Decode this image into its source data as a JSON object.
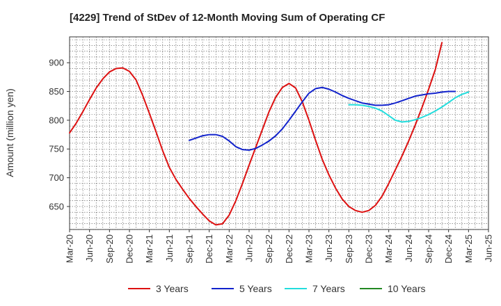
{
  "chart_data": {
    "type": "line",
    "title": "[4229]  Trend of StDev of 12-Month Moving Sum of Operating CF",
    "xlabel": "",
    "ylabel": "Amount (million yen)",
    "ylim": [
      610,
      945
    ],
    "yticks": [
      650,
      700,
      750,
      800,
      850,
      900
    ],
    "x_range": [
      0,
      63
    ],
    "xtick_labels": [
      "Mar-20",
      "Jun-20",
      "Sep-20",
      "Dec-20",
      "Mar-21",
      "Jun-21",
      "Sep-21",
      "Dec-21",
      "Mar-22",
      "Jun-22",
      "Sep-22",
      "Dec-22",
      "Mar-23",
      "Jun-23",
      "Sep-23",
      "Dec-23",
      "Mar-24",
      "Jun-24",
      "Sep-24",
      "Dec-24",
      "Mar-25",
      "Jun-25"
    ],
    "grid": true,
    "legend_position": "bottom",
    "series": [
      {
        "name": "3 Years",
        "color": "#dd1111",
        "start_index": 0,
        "values": [
          778,
          795,
          815,
          836,
          856,
          872,
          884,
          890,
          891,
          885,
          870,
          843,
          812,
          780,
          747,
          718,
          697,
          680,
          664,
          650,
          637,
          625,
          618,
          620,
          635,
          660,
          690,
          722,
          753,
          784,
          815,
          840,
          857,
          864,
          856,
          832,
          800,
          765,
          732,
          705,
          682,
          663,
          650,
          643,
          640,
          643,
          652,
          668,
          690,
          714,
          738,
          764,
          792,
          822,
          854,
          888,
          935
        ]
      },
      {
        "name": "5 Years",
        "color": "#1122cc",
        "start_index": 18,
        "values": [
          765,
          769,
          773,
          775,
          775,
          772,
          764,
          754,
          749,
          748,
          751,
          757,
          764,
          773,
          785,
          800,
          816,
          832,
          847,
          855,
          857,
          854,
          849,
          843,
          838,
          834,
          830,
          828,
          826,
          826,
          827,
          830,
          834,
          838,
          842,
          844,
          846,
          847,
          849,
          850,
          850
        ]
      },
      {
        "name": "7 Years",
        "color": "#22dddd",
        "start_index": 42,
        "values": [
          827,
          827,
          826,
          824,
          821,
          816,
          808,
          800,
          797,
          798,
          801,
          805,
          810,
          816,
          823,
          831,
          839,
          845,
          849
        ]
      },
      {
        "name": "10 Years",
        "color": "#228822",
        "start_index": 0,
        "values": []
      }
    ]
  }
}
